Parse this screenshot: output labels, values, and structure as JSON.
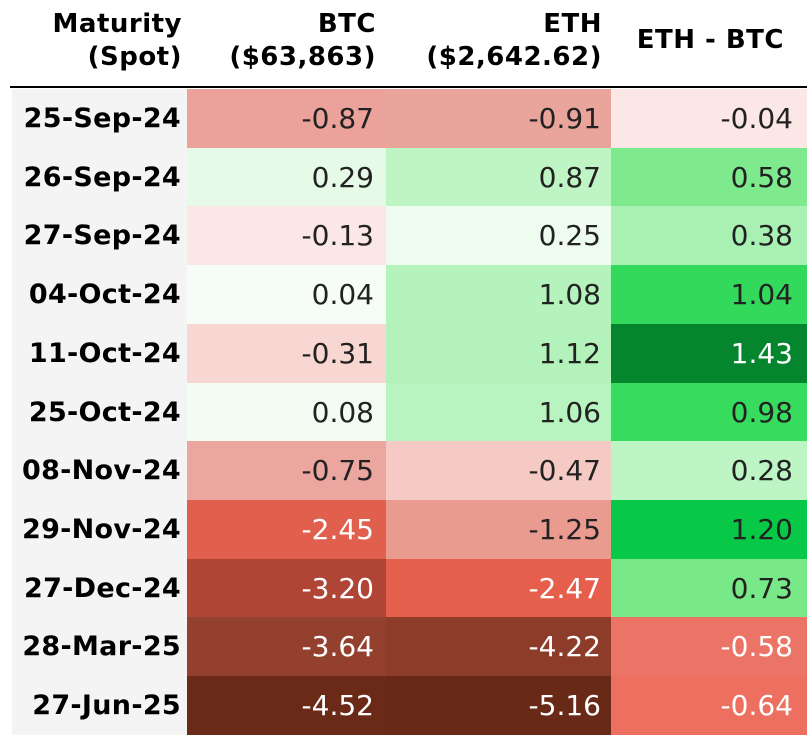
{
  "chart_data": {
    "type": "table",
    "columns": [
      {
        "key": "maturity",
        "label_lines": [
          "Maturity",
          "(Spot)"
        ]
      },
      {
        "key": "btc",
        "label_lines": [
          "BTC",
          "($63,863)"
        ]
      },
      {
        "key": "eth",
        "label_lines": [
          "ETH",
          "($2,642.62)"
        ]
      },
      {
        "key": "diff",
        "label_lines": [
          "ETH - BTC"
        ]
      }
    ],
    "rows": [
      {
        "maturity": "25-Sep-24",
        "btc": "-0.87",
        "eth": "-0.91",
        "diff": "-0.04"
      },
      {
        "maturity": "26-Sep-24",
        "btc": "0.29",
        "eth": "0.87",
        "diff": "0.58"
      },
      {
        "maturity": "27-Sep-24",
        "btc": "-0.13",
        "eth": "0.25",
        "diff": "0.38"
      },
      {
        "maturity": "04-Oct-24",
        "btc": "0.04",
        "eth": "1.08",
        "diff": "1.04"
      },
      {
        "maturity": "11-Oct-24",
        "btc": "-0.31",
        "eth": "1.12",
        "diff": "1.43"
      },
      {
        "maturity": "25-Oct-24",
        "btc": "0.08",
        "eth": "1.06",
        "diff": "0.98"
      },
      {
        "maturity": "08-Nov-24",
        "btc": "-0.75",
        "eth": "-0.47",
        "diff": "0.28"
      },
      {
        "maturity": "29-Nov-24",
        "btc": "-2.45",
        "eth": "-1.25",
        "diff": "1.20"
      },
      {
        "maturity": "27-Dec-24",
        "btc": "-3.20",
        "eth": "-2.47",
        "diff": "0.73"
      },
      {
        "maturity": "28-Mar-25",
        "btc": "-3.64",
        "eth": "-4.22",
        "diff": "-0.58"
      },
      {
        "maturity": "27-Jun-25",
        "btc": "-4.52",
        "eth": "-5.16",
        "diff": "-0.64"
      }
    ],
    "cell_colors": {
      "btc": [
        "#eba29a",
        "#e5fbe7",
        "#fbe7e5",
        "#f6fdf6",
        "#f8d6d2",
        "#f2fcf2",
        "#eba69f",
        "#e0604d",
        "#b04536",
        "#93402f",
        "#6a2a17"
      ],
      "eth": [
        "#e9a49c",
        "#bff5c4",
        "#eefcef",
        "#b5f3bd",
        "#b3f3bb",
        "#b8f4bf",
        "#f5cac4",
        "#ea9b90",
        "#e55f4c",
        "#8d3c2a",
        "#682916"
      ],
      "diff": [
        "#fbe7e5",
        "#7ee98d",
        "#a8f1b2",
        "#33d95a",
        "#06852f",
        "#37dc5e",
        "#bdf5c4",
        "#08c947",
        "#79e888",
        "#ec7466",
        "#ec6f60"
      ]
    },
    "text_colors": {
      "btc": [
        "#222222",
        "#222222",
        "#222222",
        "#222222",
        "#222222",
        "#222222",
        "#222222",
        "#ffffff",
        "#ffffff",
        "#ffffff",
        "#ffffff"
      ],
      "eth": [
        "#222222",
        "#222222",
        "#222222",
        "#222222",
        "#222222",
        "#222222",
        "#222222",
        "#222222",
        "#ffffff",
        "#ffffff",
        "#ffffff"
      ],
      "diff": [
        "#222222",
        "#222222",
        "#222222",
        "#222222",
        "#ffffff",
        "#222222",
        "#222222",
        "#222222",
        "#222222",
        "#ffffff",
        "#ffffff"
      ]
    }
  }
}
